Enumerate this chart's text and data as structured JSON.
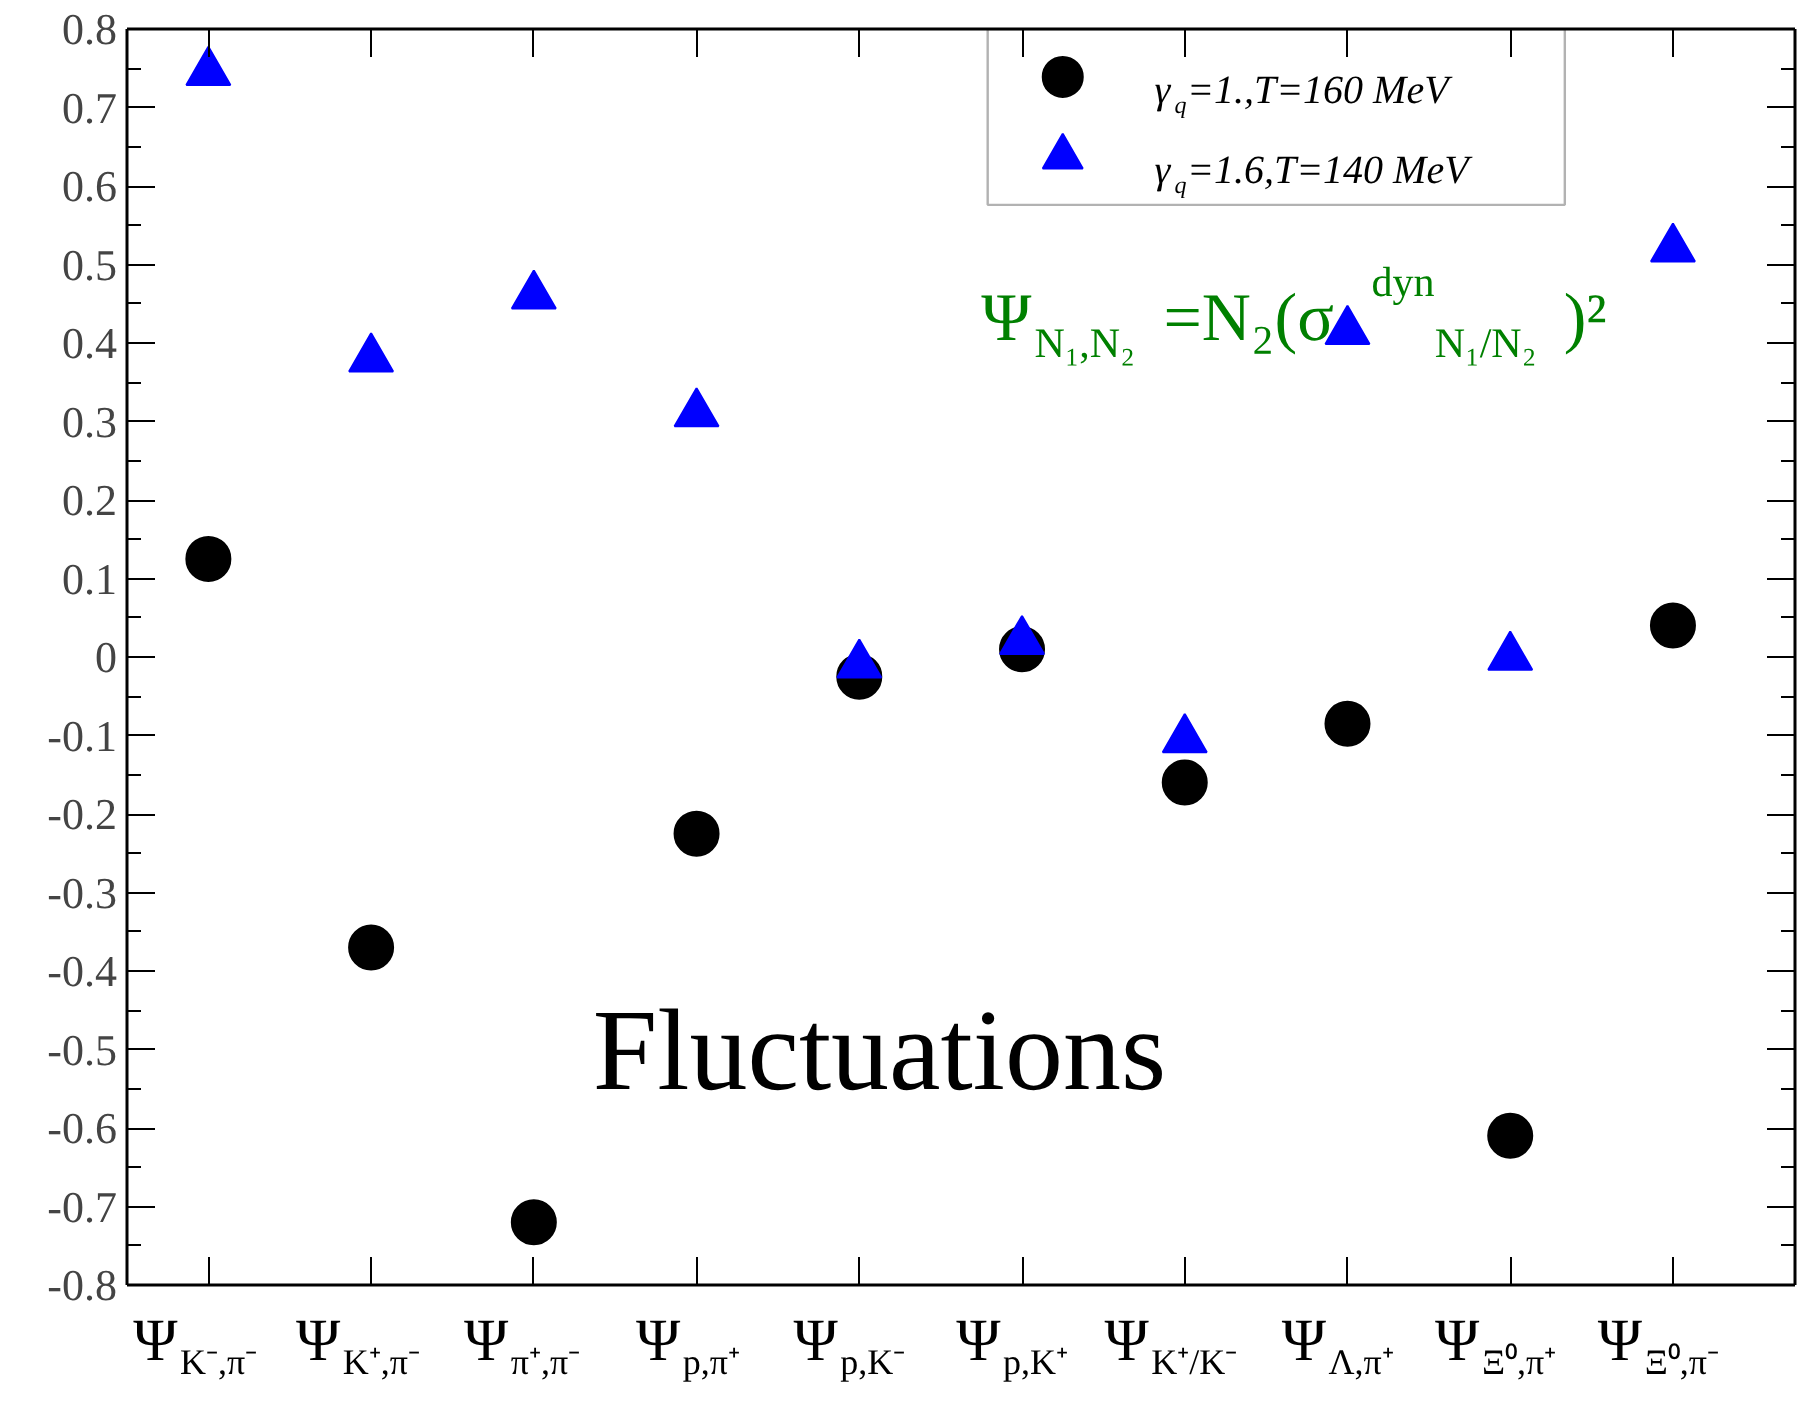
{
  "chart_data": {
    "type": "scatter",
    "categories": [
      "Ψ$_{K⁻,π⁻}$",
      "Ψ$_{K⁺,π⁻}$",
      "Ψ$_{π⁺,π⁻}$",
      "Ψ$_{p,π⁺}$",
      "Ψ$_{p,K⁻}$",
      "Ψ$_{p,K⁺}$",
      "Ψ$_{K⁺/K⁻}$",
      "Ψ$_{Λ,π⁺}$",
      "Ψ$_{Ξ⁰,π⁺}$",
      "Ψ$_{Ξ⁰,π⁻}$"
    ],
    "series": [
      {
        "name": "γ$_{q}$=1.,T=160 MeV",
        "color": "#000000",
        "marker": "circle",
        "values": [
          0.125,
          -0.37,
          -0.72,
          -0.225,
          -0.025,
          0.01,
          -0.16,
          -0.085,
          -0.61,
          0.04
        ]
      },
      {
        "name": "γ$_{q}$=1.6,T=140 MeV",
        "color": "#0000ff",
        "marker": "triangle",
        "values": [
          0.745,
          0.38,
          0.46,
          0.31,
          -0.01,
          0.02,
          -0.105,
          0.415,
          0.0,
          0.52
        ]
      }
    ],
    "ylim": [
      -0.8,
      0.8
    ],
    "yticks": [
      -0.8,
      -0.7,
      -0.6,
      -0.5,
      -0.4,
      -0.3,
      -0.2,
      -0.1,
      0,
      0.1,
      0.2,
      0.3,
      0.4,
      0.5,
      0.6,
      0.7,
      0.8
    ],
    "grid": false,
    "legend": "top right",
    "annotations": [
      "Ψ$_{N₁,N₂}$=N₂(σ$^{dyn}$$_{N₁/N₂}$)²",
      "Fluctuations"
    ]
  }
}
